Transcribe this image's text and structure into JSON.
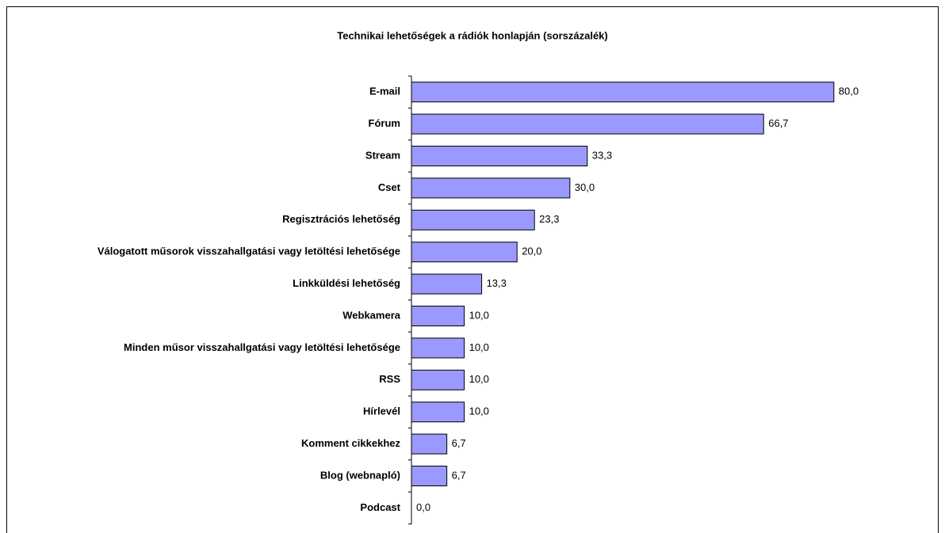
{
  "chart_data": {
    "type": "bar",
    "orientation": "horizontal",
    "title": "Technikai lehetőségek a rádiók honlapján (sorszázalék)",
    "categories": [
      "E-mail",
      "Fórum",
      "Stream",
      "Cset",
      "Regisztrációs lehetőség",
      "Válogatott műsorok visszahallgatási vagy letöltési lehetősége",
      "Linkküldési lehetőség",
      "Webkamera",
      "Minden műsor visszahallgatási vagy letöltési lehetősége",
      "RSS",
      "Hírlevél",
      "Komment cikkekhez",
      "Blog (webnapló)",
      "Podcast"
    ],
    "values": [
      80.0,
      66.7,
      33.3,
      30.0,
      23.3,
      20.0,
      13.3,
      10.0,
      10.0,
      10.0,
      10.0,
      6.7,
      6.7,
      0.0
    ],
    "value_labels": [
      "80,0",
      "66,7",
      "33,3",
      "30,0",
      "23,3",
      "20,0",
      "13,3",
      "10,0",
      "10,0",
      "10,0",
      "10,0",
      "6,7",
      "6,7",
      "0,0"
    ],
    "color": "#9999ff",
    "xlim": [
      0,
      100
    ]
  }
}
